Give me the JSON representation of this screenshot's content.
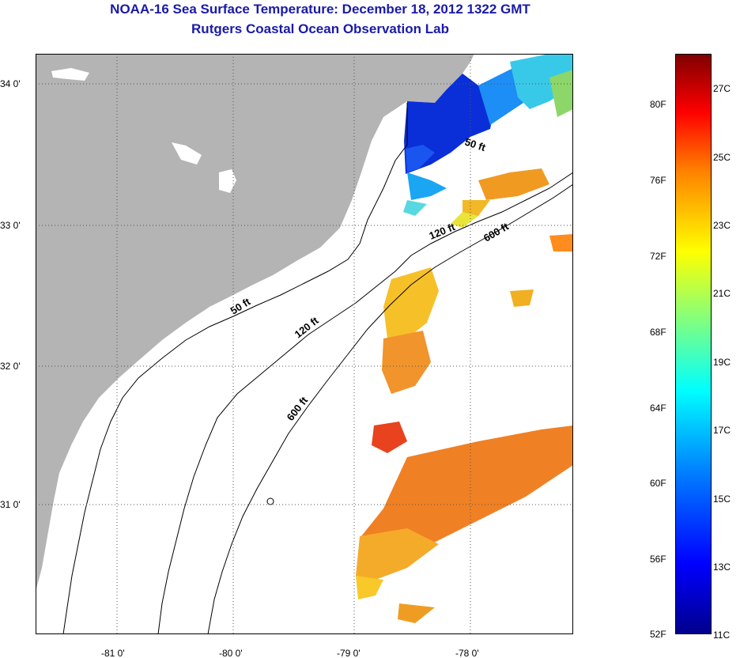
{
  "title": {
    "line1": "NOAA-16 Sea Surface Temperature:  December 18, 2012 1322 GMT",
    "line2": "Rutgers Coastal Ocean Observation Lab"
  },
  "axes": {
    "lat_labels": [
      "34 0'",
      "33 0'",
      "32 0'",
      "31 0'"
    ],
    "lon_labels": [
      "-81 0'",
      "-80 0'",
      "-79 0'",
      "-78 0'"
    ]
  },
  "contours": {
    "c50_a": "50 ft",
    "c50_b": "50 ft",
    "c120_a": "120 ft",
    "c120_b": "120 ft",
    "c600_a": "600 ft",
    "c600_b": "600 ft"
  },
  "colorbar": {
    "fahrenheit": [
      "52F",
      "56F",
      "60F",
      "64F",
      "68F",
      "72F",
      "76F",
      "80F"
    ],
    "celsius": [
      "11C",
      "13C",
      "15C",
      "17C",
      "19C",
      "21C",
      "23C",
      "25C",
      "27C"
    ]
  },
  "colors": {
    "land": "#b4b4b4",
    "title": "#1a1aa8"
  }
}
